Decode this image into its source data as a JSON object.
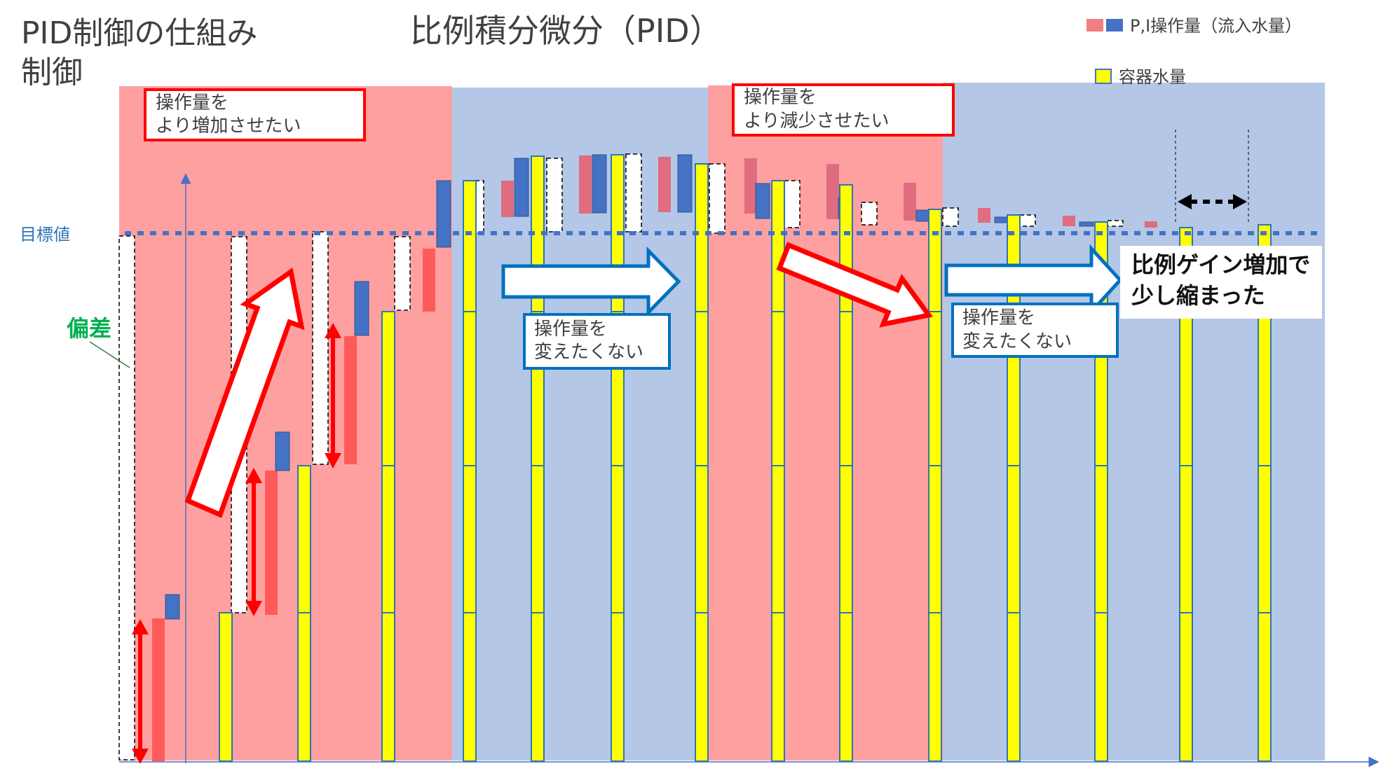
{
  "title_left": "PID制御の仕組み",
  "title_left_line2": "制御",
  "title_main": "比例積分微分（PID）",
  "legend": {
    "pi_label": "P,I操作量（流入水量）",
    "water_label": "容器水量",
    "p_color": "#f08080",
    "i_color": "#4472c4",
    "water_color": "#ffff00"
  },
  "target_label": "目標値",
  "deviation_label": "偏差",
  "callouts": {
    "increase_line1": "操作量を",
    "increase_line2": "より増加させたい",
    "decrease_line1": "操作量を",
    "decrease_line2": "より減少させたい",
    "keep1_line1": "操作量を",
    "keep1_line2": "変えたくない",
    "keep2_line1": "操作量を",
    "keep2_line2": "変えたくない"
  },
  "result": {
    "line1": "比例ゲイン増加で",
    "line2": "少し縮まった"
  },
  "colors": {
    "red_zone": "#ffa0a0",
    "blue_zone": "#b4c7e7",
    "target_line": "#4472c4",
    "arrow_red": "#ff0000",
    "arrow_blue": "#0070c0"
  }
}
